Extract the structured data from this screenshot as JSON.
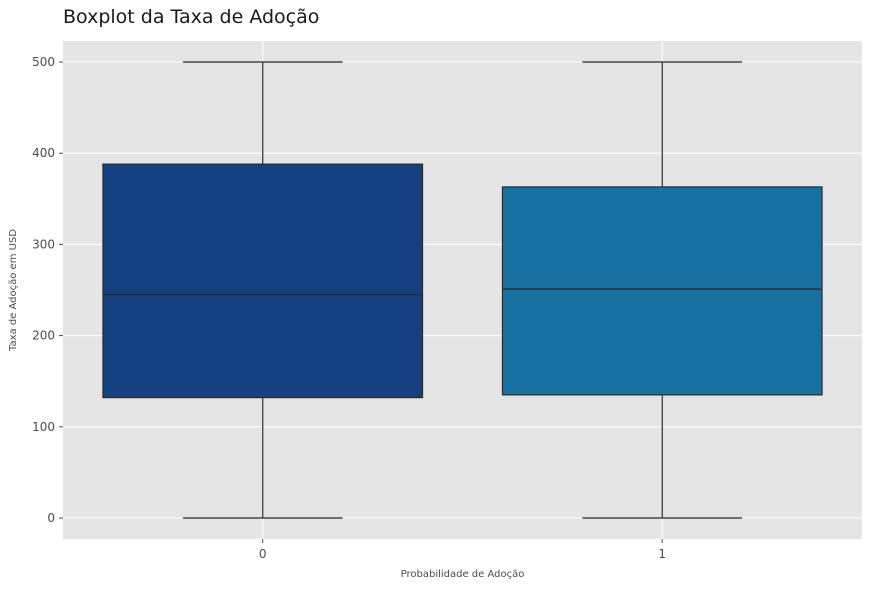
{
  "chart_data": {
    "type": "boxplot",
    "title": "Boxplot da Taxa de Adoção",
    "xlabel": "Probabilidade de Adoção",
    "ylabel": "Taxa de Adoção em USD",
    "categories": [
      "0",
      "1"
    ],
    "ylim": [
      -23,
      523
    ],
    "yticks": [
      0,
      100,
      200,
      300,
      400,
      500
    ],
    "grid": true,
    "legend": "none",
    "boxes": [
      {
        "category": "0",
        "whisker_low": 0,
        "q1": 132,
        "median": 245,
        "q3": 388,
        "whisker_high": 500,
        "color": "#15407f"
      },
      {
        "category": "1",
        "whisker_low": 0,
        "q1": 135,
        "median": 251,
        "q3": 363,
        "whisker_high": 500,
        "color": "#1971a2"
      }
    ]
  },
  "colors": {
    "panel_background": "#e5e5e5",
    "grid": "#ffffff",
    "line": "#2b2b2b",
    "tick_text": "#4d4d4d"
  }
}
